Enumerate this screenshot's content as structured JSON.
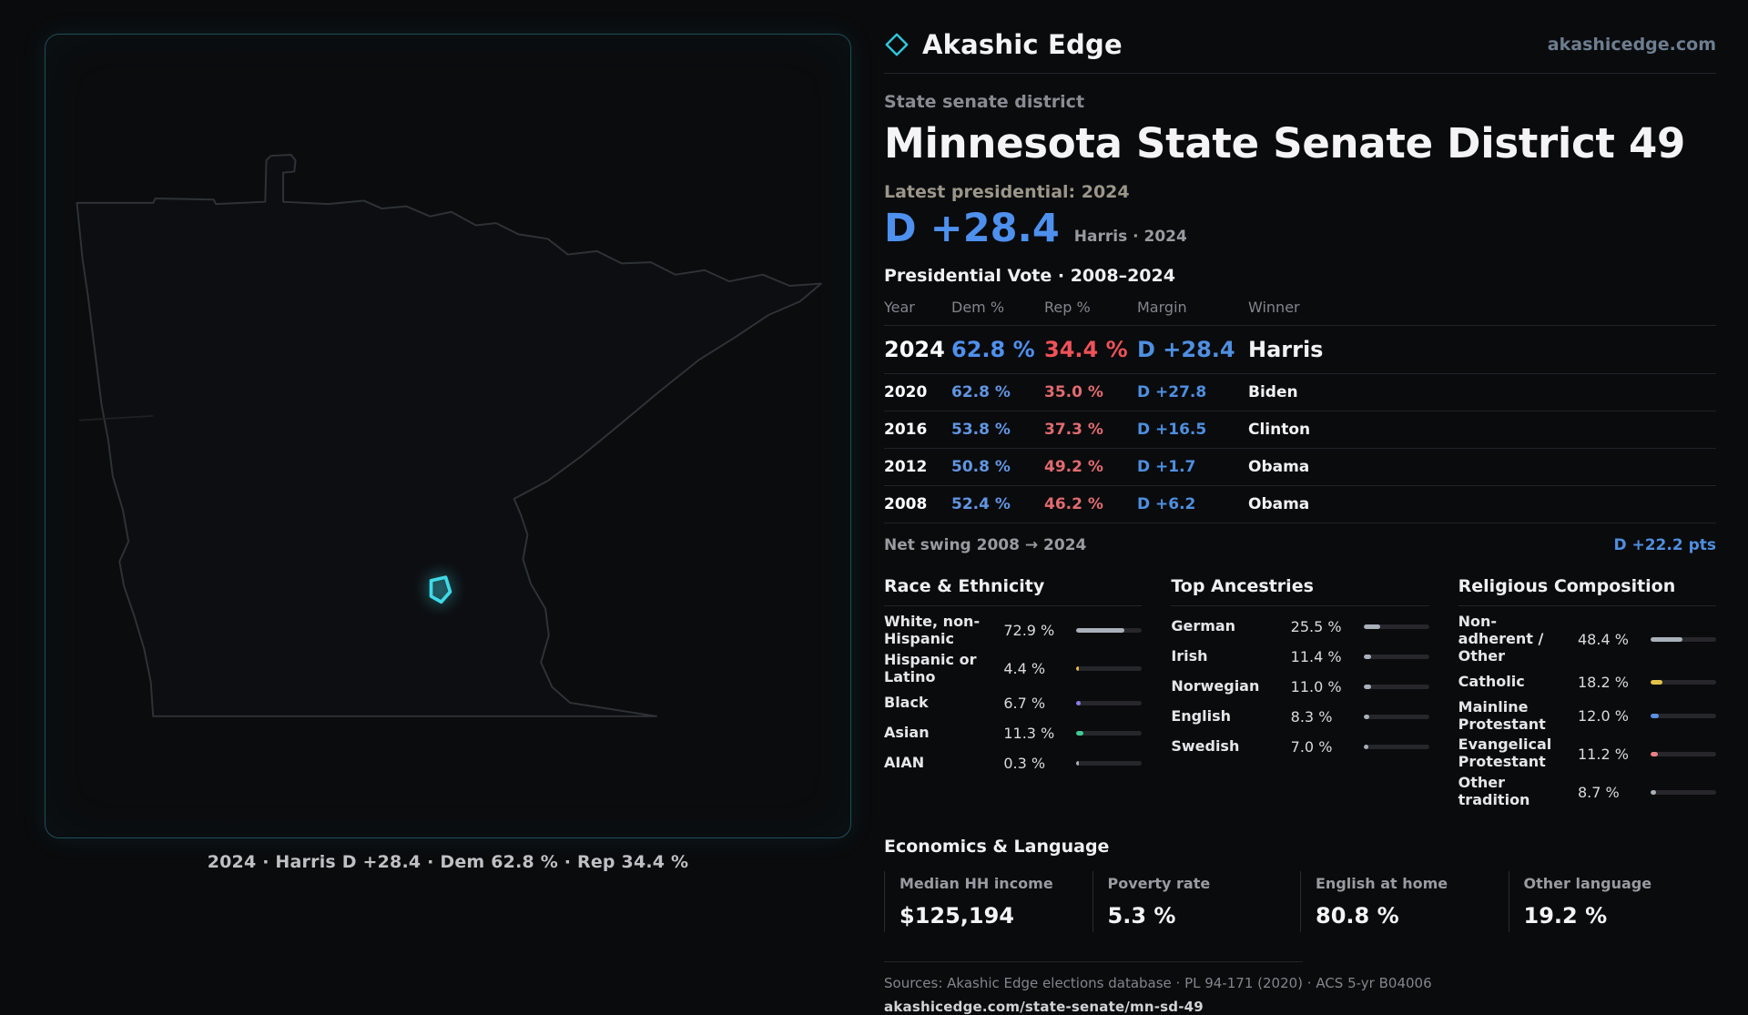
{
  "theme": {
    "background": "#0a0b0d",
    "panel_border": "#1d4f58",
    "accent_cyan": "#3fd9e8",
    "dem_blue": "#4e90ee",
    "rep_red": "#ef5258",
    "muted_gray": "#9a9aa1"
  },
  "brand": {
    "name": "Akashic Edge",
    "site": "akashicedge.com"
  },
  "map": {
    "caption": "2024 · Harris D +28.4 · Dem 62.8 % · Rep 34.4 %"
  },
  "district": {
    "kicker": "State senate district",
    "title": "Minnesota State Senate District 49",
    "latest_label": "Latest presidential: 2024",
    "latest_margin": "D +28.4",
    "latest_detail": "Harris · 2024"
  },
  "vote_table": {
    "title": "Presidential Vote · 2008–2024",
    "headers": [
      "Year",
      "Dem %",
      "Rep %",
      "Margin",
      "Winner"
    ],
    "rows": [
      {
        "year": "2024",
        "dem": "62.8 %",
        "rep": "34.4 %",
        "margin": "D +28.4",
        "winner": "Harris"
      },
      {
        "year": "2020",
        "dem": "62.8 %",
        "rep": "35.0 %",
        "margin": "D +27.8",
        "winner": "Biden"
      },
      {
        "year": "2016",
        "dem": "53.8 %",
        "rep": "37.3 %",
        "margin": "D +16.5",
        "winner": "Clinton"
      },
      {
        "year": "2012",
        "dem": "50.8 %",
        "rep": "49.2 %",
        "margin": "D +1.7",
        "winner": "Obama"
      },
      {
        "year": "2008",
        "dem": "52.4 %",
        "rep": "46.2 %",
        "margin": "D +6.2",
        "winner": "Obama"
      }
    ]
  },
  "swing": {
    "label": "Net swing 2008 → 2024",
    "value": "D +22.2 pts"
  },
  "demographics": {
    "columns": [
      {
        "title": "Race & Ethnicity",
        "rows": [
          {
            "label": "White, non-Hispanic",
            "value": "72.9 %",
            "pct": 72.9,
            "color": "#a9b0ba"
          },
          {
            "label": "Hispanic or Latino",
            "value": "4.4 %",
            "pct": 4.4,
            "color": "#e3b84a"
          },
          {
            "label": "Black",
            "value": "6.7 %",
            "pct": 6.7,
            "color": "#8d7bea"
          },
          {
            "label": "Asian",
            "value": "11.3 %",
            "pct": 11.3,
            "color": "#3ecb96"
          },
          {
            "label": "AIAN",
            "value": "0.3 %",
            "pct": 0.3,
            "color": "#a9b0ba"
          }
        ]
      },
      {
        "title": "Top Ancestries",
        "rows": [
          {
            "label": "German",
            "value": "25.5 %",
            "pct": 25.5,
            "color": "#a9b0ba"
          },
          {
            "label": "Irish",
            "value": "11.4 %",
            "pct": 11.4,
            "color": "#a9b0ba"
          },
          {
            "label": "Norwegian",
            "value": "11.0 %",
            "pct": 11.0,
            "color": "#a9b0ba"
          },
          {
            "label": "English",
            "value": "8.3 %",
            "pct": 8.3,
            "color": "#a9b0ba"
          },
          {
            "label": "Swedish",
            "value": "7.0 %",
            "pct": 7.0,
            "color": "#a9b0ba"
          }
        ]
      },
      {
        "title": "Religious Composition",
        "rows": [
          {
            "label": "Non-adherent / Other",
            "value": "48.4 %",
            "pct": 48.4,
            "color": "#a9b0ba"
          },
          {
            "label": "Catholic",
            "value": "18.2 %",
            "pct": 18.2,
            "color": "#e3c24a"
          },
          {
            "label": "Mainline Protestant",
            "value": "12.0 %",
            "pct": 12.0,
            "color": "#5b8fe0"
          },
          {
            "label": "Evangelical Protestant",
            "value": "11.2 %",
            "pct": 11.2,
            "color": "#e87f85"
          },
          {
            "label": "Other tradition",
            "value": "8.7 %",
            "pct": 8.7,
            "color": "#a9b0ba"
          }
        ]
      }
    ]
  },
  "economics": {
    "title": "Economics & Language",
    "stats": [
      {
        "label": "Median HH income",
        "value": "$125,194"
      },
      {
        "label": "Poverty rate",
        "value": "5.3 %"
      },
      {
        "label": "English at home",
        "value": "80.8 %"
      },
      {
        "label": "Other language",
        "value": "19.2 %"
      }
    ]
  },
  "footer": {
    "sources": "Sources: Akashic Edge elections database · PL 94-171 (2020) · ACS 5-yr B04006",
    "permalink": "akashicedge.com/state-senate/mn-sd-49"
  }
}
